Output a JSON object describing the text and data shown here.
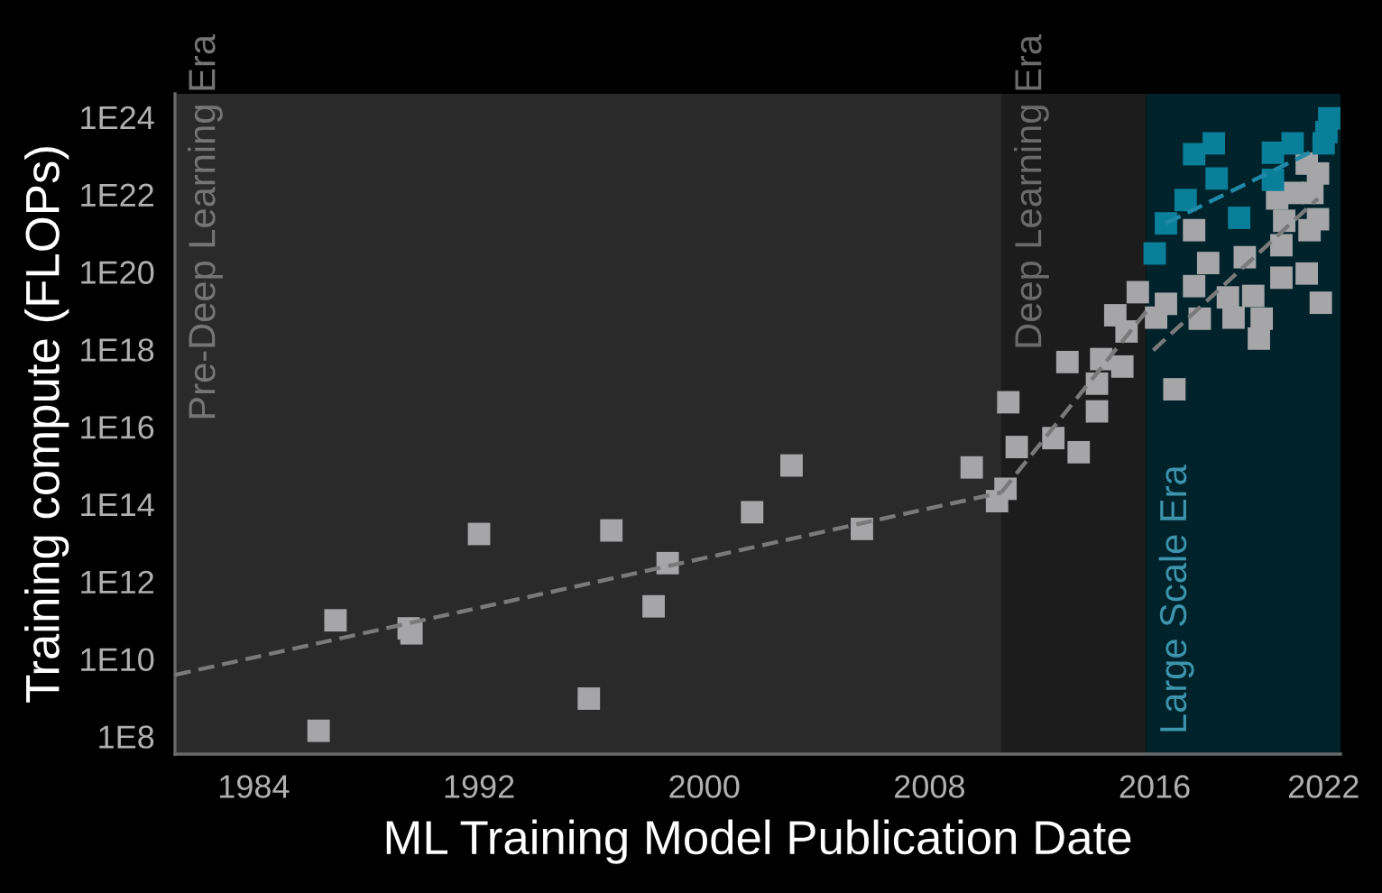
{
  "chart_data": {
    "type": "scatter",
    "xlabel": "ML Training Model Publication Date",
    "ylabel": "Training compute (FLOPs)",
    "log": "y",
    "marker": "square",
    "grid": false,
    "xlim": [
      1981.2,
      2022.6
    ],
    "xticks": [
      1984,
      1992,
      2000,
      2008,
      2016,
      2022
    ],
    "ylim": [
      35000000.0,
      4e+24
    ],
    "yticks": [
      {
        "value": 100000000.0,
        "label": "1E8"
      },
      {
        "value": 10000000000.0,
        "label": "1E10"
      },
      {
        "value": 1000000000000.0,
        "label": "1E12"
      },
      {
        "value": 100000000000000.0,
        "label": "1E14"
      },
      {
        "value": 1e+16,
        "label": "1E16"
      },
      {
        "value": 1e+18,
        "label": "1E18"
      },
      {
        "value": 1e+20,
        "label": "1E20"
      },
      {
        "value": 1e+22,
        "label": "1E22"
      },
      {
        "value": 1e+24,
        "label": "1E24"
      }
    ],
    "bands": [
      {
        "axis": "x",
        "from": 1981.2,
        "to": 2010.55,
        "label": "Pre-Deep Learning Era",
        "color": "#2a2a2a"
      },
      {
        "axis": "x",
        "from": 2010.55,
        "to": 2015.7,
        "label": "Deep Learning Era",
        "color": "#1c1c1c"
      },
      {
        "axis": "x",
        "from": 2015.7,
        "to": 2022.6,
        "label": "Large Scale Era",
        "color": "#00232b"
      }
    ],
    "series": [
      {
        "color": "#a6a6a8",
        "x": [
          1986.3,
          1986.9,
          1989.5,
          1989.6,
          1992.0,
          1995.9,
          1996.7,
          1998.2,
          1998.7,
          2001.7,
          2003.1,
          2005.6,
          2009.5,
          2010.4,
          2010.7,
          2010.8,
          2011.1,
          2012.4,
          2013.3,
          2012.9,
          2013.95,
          2013.95,
          2014.1,
          2014.85,
          2014.6,
          2015.0,
          2015.4,
          2016.4,
          2016.05,
          2016.7,
          2017.4,
          2017.9,
          2017.4,
          2017.6,
          2018.6,
          2018.8,
          2019.2,
          2019.5,
          2019.8,
          2019.7,
          2020.5,
          2020.5,
          2020.35,
          2020.9,
          2020.6,
          2021.4,
          2021.5,
          2021.8,
          2021.6,
          2021.4,
          2021.8,
          2021.9
        ],
        "values": [
          140000000.0,
          100000000000.0,
          62000000000.0,
          46000000000.0,
          17000000000000.0,
          950000000.0,
          21000000000000.0,
          230000000000.0,
          3000000000000.0,
          62000000000000.0,
          1000000000000000.0,
          23000000000000.0,
          890000000000000.0,
          120000000000000.0,
          250000000000000.0,
          4.3e+16,
          3000000000000000.0,
          5100000000000000.0,
          2200000000000000.0,
          4.7e+17,
          1.3e+17,
          2.5e+16,
          5.6e+17,
          3.6e+17,
          7.6e+18,
          2.9e+18,
          3e+19,
          1.5e+19,
          6.6e+18,
          9.3e+16,
          1.2e+21,
          1.7e+20,
          4.3e+19,
          6.2e+18,
          2.2e+19,
          6.6e+18,
          2.4e+20,
          2.4e+19,
          6.2e+18,
          1.9e+18,
          4.9e+20,
          7.1e+19,
          7.9e+21,
          1.1e+22,
          2.1e+21,
          9.1e+19,
          1.2e+21,
          2.3e+21,
          1.1e+22,
          6.3e+22,
          3.5e+22,
          1.6e+19
        ]
      },
      {
        "color": "#0a7f99",
        "x": [
          2016.0,
          2016.4,
          2017.1,
          2017.4,
          2018.1,
          2018.2,
          2019.0,
          2020.2,
          2020.9,
          2020.2,
          2022.0,
          2022.1,
          2022.2
        ],
        "values": [
          3e+20,
          1.8e+21,
          7.2e+21,
          1.1e+23,
          2.1e+23,
          2.6e+22,
          2.5e+21,
          1.2e+23,
          2.1e+23,
          2.4e+22,
          2.1e+23,
          4.1e+23,
          9.3e+23
        ]
      },
      {
        "type": "line",
        "line_style": "dashed",
        "marker": "none",
        "color": "#7a7a7a",
        "x": [
          1981.2,
          2010.55
        ],
        "values": [
          3900000000.0,
          200000000000000.0
        ]
      },
      {
        "type": "line",
        "line_style": "dashed",
        "marker": "none",
        "color": "#7a7a7a",
        "x": [
          2010.55,
          2015.7
        ],
        "values": [
          200000000000000.0,
          9.5e+18
        ]
      },
      {
        "type": "line",
        "line_style": "dashed",
        "marker": "none",
        "color": "#7a7a7a",
        "x": [
          2015.95,
          2021.8
        ],
        "values": [
          9.5e+17,
          7.9e+21
        ]
      },
      {
        "type": "line",
        "line_style": "dashed",
        "marker": "none",
        "color": "#1e8aa8",
        "x": [
          2016.4,
          2021.5
        ],
        "values": [
          1.8e+21,
          1.2e+23
        ]
      }
    ]
  }
}
